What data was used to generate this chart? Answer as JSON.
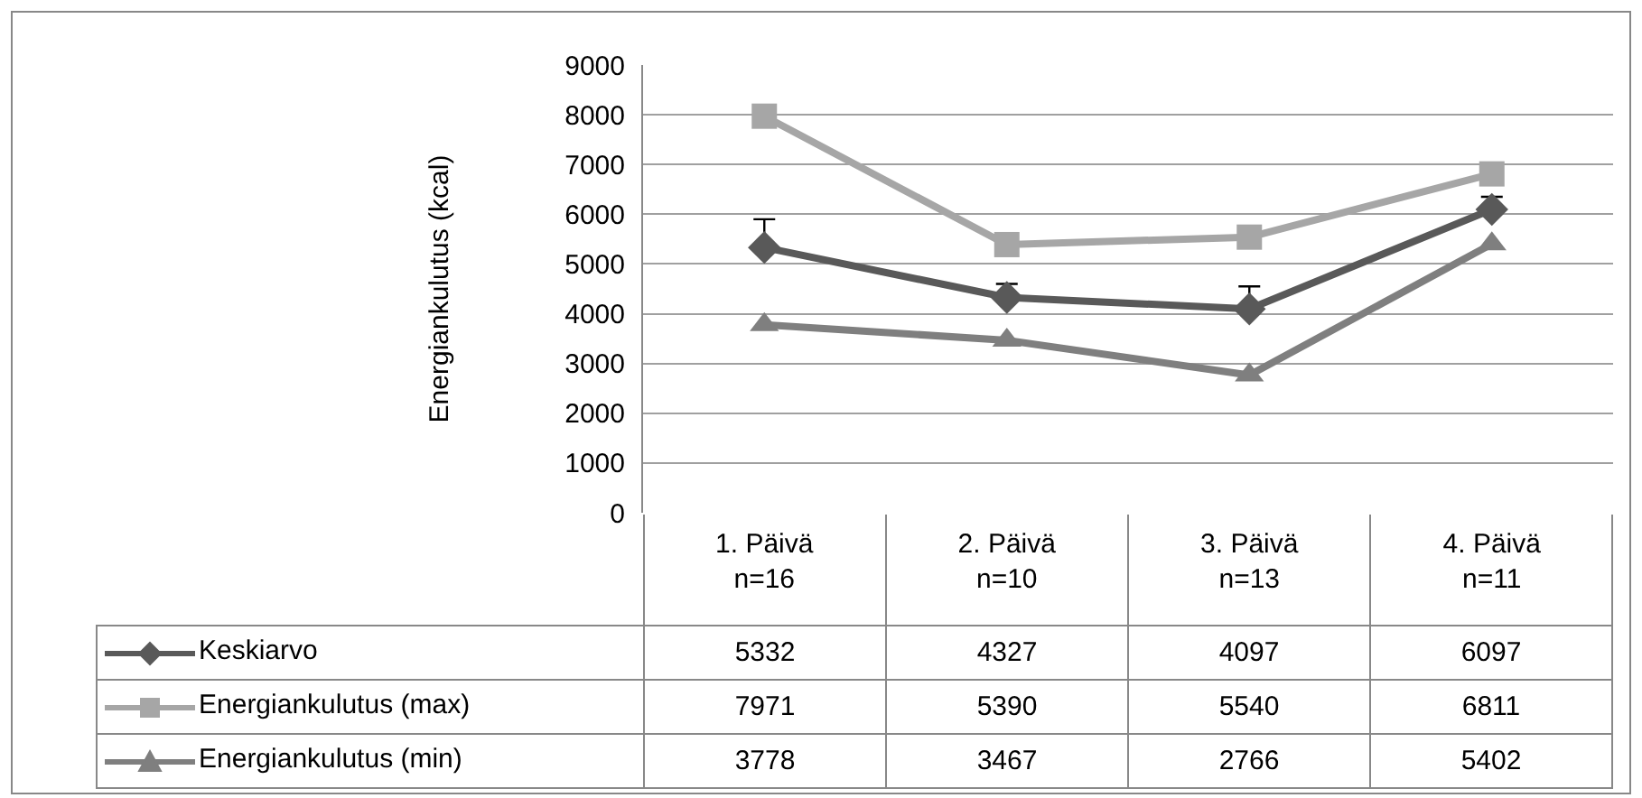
{
  "chart_data": {
    "type": "line",
    "ylabel": "Energiankulutus (kcal)",
    "categories": [
      "1. Päivä\nn=16",
      "2. Päivä\nn=10",
      "3. Päivä\nn=13",
      "4. Päivä\nn=11"
    ],
    "series": [
      {
        "name": "Keskiarvo",
        "color": "#595959",
        "marker": "diamond",
        "values": [
          5332,
          4327,
          4097,
          6097
        ],
        "errors": [
          [
            5332,
            5900
          ],
          [
            4327,
            4600
          ],
          [
            4097,
            4550
          ],
          [
            6097,
            6350
          ]
        ]
      },
      {
        "name": "Energiankulutus (max)",
        "color": "#a6a6a6",
        "marker": "square",
        "values": [
          7971,
          5390,
          5540,
          6811
        ]
      },
      {
        "name": "Energiankulutus (min)",
        "color": "#7f7f7f",
        "marker": "triangle",
        "values": [
          3778,
          3467,
          2766,
          5402
        ]
      }
    ],
    "ylim": [
      0,
      9000
    ],
    "yticks": [
      0,
      1000,
      2000,
      3000,
      4000,
      5000,
      6000,
      7000,
      8000,
      9000
    ],
    "grid": "y",
    "data_labels": true,
    "legend": "bottom left",
    "line_style": "solid"
  }
}
